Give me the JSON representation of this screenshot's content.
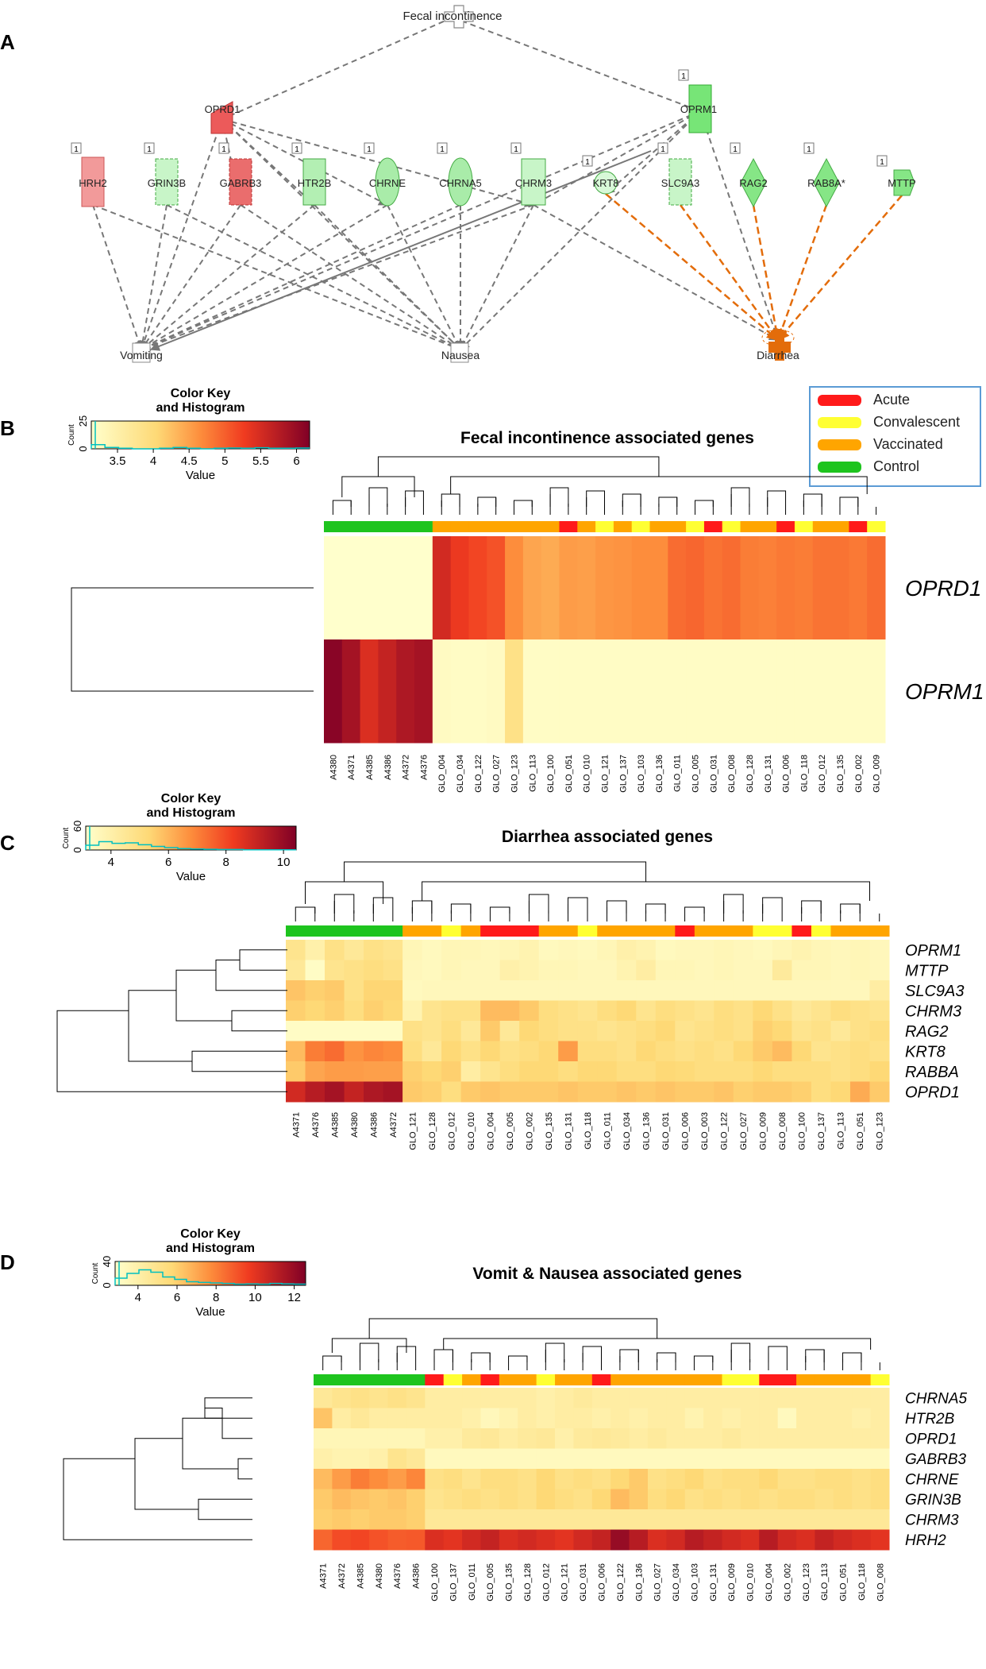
{
  "panel_labels": [
    "A",
    "B",
    "C",
    "D"
  ],
  "network": {
    "hubs": {
      "fecal": "Fecal incontinence",
      "vomiting": "Vomiting",
      "nausea": "Nausea",
      "diarrhea": "Diarrhea"
    },
    "count_badge": "1",
    "genes": [
      {
        "id": "OPRD1",
        "label": "OPRD1",
        "color": "#ec5a5a"
      },
      {
        "id": "OPRM1",
        "label": "OPRM1",
        "color": "#77e577"
      },
      {
        "id": "HRH2",
        "label": "HRH2",
        "color": "#f29a9a"
      },
      {
        "id": "GRIN3B",
        "label": "GRIN3B",
        "color": "#c8f5c8"
      },
      {
        "id": "GABRB3",
        "label": "GABRB3",
        "color": "#ea6d6d"
      },
      {
        "id": "HTR2B",
        "label": "HTR2B",
        "color": "#b3efb3"
      },
      {
        "id": "CHRNE",
        "label": "CHRNE",
        "color": "#a9eca9"
      },
      {
        "id": "CHRNA5",
        "label": "CHRNA5",
        "color": "#a9eca9"
      },
      {
        "id": "CHRM3",
        "label": "CHRM3",
        "color": "#c8f5c8"
      },
      {
        "id": "KRT8",
        "label": "KRT8",
        "color": "#d8f8d8"
      },
      {
        "id": "SLC9A3",
        "label": "SLC9A3",
        "color": "#c8f5c8"
      },
      {
        "id": "RAG2",
        "label": "RAG2",
        "color": "#86e686"
      },
      {
        "id": "RAB8A",
        "label": "RAB8A*",
        "color": "#86e686"
      },
      {
        "id": "MTTP",
        "label": "MTTP",
        "color": "#86e686"
      }
    ]
  },
  "legend": {
    "items": [
      {
        "label": "Acute",
        "color": "#ff1a1a"
      },
      {
        "label": "Convalescent",
        "color": "#ffff33"
      },
      {
        "label": "Vaccinated",
        "color": "#ffa500"
      },
      {
        "label": "Control",
        "color": "#1ec41e"
      }
    ]
  },
  "heatmaps": [
    {
      "title": "Fecal incontinence associated genes",
      "colorkey": {
        "title1": "Color Key",
        "title2": "and Histogram",
        "ylab": "Count",
        "yticks": [
          "0",
          "25"
        ],
        "xticks": [
          "3.5",
          "4",
          "4.5",
          "5",
          "5.5",
          "6"
        ],
        "xlabel": "Value",
        "histogram": [
          0.15,
          0.05,
          0.02,
          0,
          0,
          0.02,
          0.05,
          0.02,
          0,
          0.02,
          0.03,
          0.02,
          0.04,
          0.02,
          0.02,
          0.03
        ]
      },
      "rows": [
        "OPRD1",
        "OPRM1"
      ],
      "columns": [
        "A4380",
        "A4371",
        "A4385",
        "A4386",
        "A4372",
        "A4376",
        "GLO_004",
        "GLO_034",
        "GLO_122",
        "GLO_027",
        "GLO_123",
        "GLO_113",
        "GLO_100",
        "GLO_051",
        "GLO_010",
        "GLO_121",
        "GLO_137",
        "GLO_103",
        "GLO_136",
        "GLO_011",
        "GLO_005",
        "GLO_031",
        "GLO_008",
        "GLO_128",
        "GLO_131",
        "GLO_006",
        "GLO_118",
        "GLO_012",
        "GLO_135",
        "GLO_002",
        "GLO_009"
      ],
      "groups": [
        "C",
        "C",
        "C",
        "C",
        "C",
        "C",
        "V",
        "V",
        "V",
        "V",
        "V",
        "V",
        "V",
        "A",
        "V",
        "Y",
        "V",
        "Y",
        "V",
        "V",
        "Y",
        "A",
        "Y",
        "V",
        "V",
        "A",
        "Y",
        "V",
        "V",
        "A",
        "Y"
      ],
      "values": [
        [
          0,
          0,
          0,
          0,
          0,
          0,
          0.82,
          0.76,
          0.72,
          0.68,
          0.5,
          0.42,
          0.4,
          0.45,
          0.44,
          0.47,
          0.48,
          0.5,
          0.5,
          0.6,
          0.62,
          0.58,
          0.6,
          0.55,
          0.54,
          0.56,
          0.55,
          0.58,
          0.58,
          0.56,
          0.6
        ],
        [
          0.98,
          0.92,
          0.8,
          0.85,
          0.9,
          0.92,
          0.03,
          0.02,
          0.02,
          0.03,
          0.2,
          0.02,
          0.02,
          0.02,
          0.02,
          0.02,
          0.02,
          0.02,
          0.02,
          0.02,
          0.02,
          0.02,
          0.02,
          0.02,
          0.02,
          0.02,
          0.02,
          0.02,
          0.02,
          0.02,
          0.02
        ]
      ]
    },
    {
      "title": "Diarrhea associated genes",
      "colorkey": {
        "title1": "Color Key",
        "title2": "and Histogram",
        "ylab": "Count",
        "yticks": [
          "0",
          "60"
        ],
        "xticks": [
          "4",
          "6",
          "8",
          "10"
        ],
        "xlabel": "Value",
        "histogram": [
          0.2,
          0.35,
          0.28,
          0.3,
          0.22,
          0.15,
          0.1,
          0.06,
          0.04,
          0.03,
          0.02,
          0.02,
          0.01,
          0.01,
          0.01,
          0.01
        ]
      },
      "rows": [
        "OPRM1",
        "MTTP",
        "SLC9A3",
        "CHRM3",
        "RAG2",
        "KRT8",
        "RABBA",
        "OPRD1"
      ],
      "columns": [
        "A4371",
        "A4376",
        "A4385",
        "A4380",
        "A4386",
        "A4372",
        "GLO_121",
        "GLO_128",
        "GLO_012",
        "GLO_010",
        "GLO_004",
        "GLO_005",
        "GLO_002",
        "GLO_135",
        "GLO_131",
        "GLO_118",
        "GLO_011",
        "GLO_034",
        "GLO_136",
        "GLO_031",
        "GLO_006",
        "GLO_003",
        "GLO_122",
        "GLO_027",
        "GLO_009",
        "GLO_008",
        "GLO_100",
        "GLO_137",
        "GLO_113",
        "GLO_051",
        "GLO_123"
      ],
      "groups": [
        "C",
        "C",
        "C",
        "C",
        "C",
        "C",
        "V",
        "V",
        "Y",
        "V",
        "A",
        "A",
        "A",
        "V",
        "V",
        "Y",
        "V",
        "V",
        "V",
        "V",
        "A",
        "V",
        "V",
        "V",
        "Y",
        "Y",
        "A",
        "Y",
        "V",
        "V",
        "V"
      ],
      "values": [
        [
          0.18,
          0.1,
          0.2,
          0.15,
          0.2,
          0.18,
          0.06,
          0.04,
          0.06,
          0.06,
          0.05,
          0.06,
          0.08,
          0.04,
          0.05,
          0.04,
          0.06,
          0.1,
          0.08,
          0.04,
          0.05,
          0.05,
          0.06,
          0.05,
          0.04,
          0.06,
          0.08,
          0.06,
          0.05,
          0.06,
          0.05
        ],
        [
          0.15,
          0.02,
          0.18,
          0.2,
          0.22,
          0.2,
          0.05,
          0.04,
          0.06,
          0.05,
          0.05,
          0.1,
          0.08,
          0.06,
          0.06,
          0.05,
          0.05,
          0.08,
          0.12,
          0.06,
          0.06,
          0.05,
          0.06,
          0.05,
          0.05,
          0.14,
          0.06,
          0.06,
          0.05,
          0.06,
          0.05
        ],
        [
          0.32,
          0.28,
          0.3,
          0.2,
          0.26,
          0.26,
          0.04,
          0.05,
          0.05,
          0.05,
          0.05,
          0.05,
          0.05,
          0.05,
          0.05,
          0.05,
          0.05,
          0.05,
          0.05,
          0.05,
          0.05,
          0.05,
          0.05,
          0.05,
          0.05,
          0.05,
          0.05,
          0.05,
          0.05,
          0.05,
          0.12
        ],
        [
          0.28,
          0.25,
          0.28,
          0.22,
          0.28,
          0.25,
          0.08,
          0.18,
          0.2,
          0.2,
          0.35,
          0.35,
          0.3,
          0.22,
          0.2,
          0.18,
          0.22,
          0.25,
          0.18,
          0.22,
          0.2,
          0.18,
          0.22,
          0.2,
          0.25,
          0.2,
          0.15,
          0.18,
          0.22,
          0.2,
          0.18
        ],
        [
          0.02,
          0.02,
          0.02,
          0.02,
          0.02,
          0.02,
          0.2,
          0.18,
          0.22,
          0.15,
          0.3,
          0.15,
          0.25,
          0.22,
          0.2,
          0.2,
          0.18,
          0.2,
          0.22,
          0.25,
          0.18,
          0.2,
          0.22,
          0.2,
          0.28,
          0.25,
          0.18,
          0.2,
          0.15,
          0.2,
          0.22
        ],
        [
          0.35,
          0.55,
          0.6,
          0.48,
          0.52,
          0.5,
          0.22,
          0.15,
          0.25,
          0.2,
          0.25,
          0.2,
          0.22,
          0.25,
          0.45,
          0.22,
          0.22,
          0.2,
          0.25,
          0.22,
          0.2,
          0.22,
          0.2,
          0.25,
          0.3,
          0.35,
          0.25,
          0.18,
          0.2,
          0.22,
          0.2
        ],
        [
          0.3,
          0.42,
          0.45,
          0.45,
          0.44,
          0.44,
          0.28,
          0.25,
          0.28,
          0.12,
          0.18,
          0.22,
          0.25,
          0.25,
          0.22,
          0.25,
          0.25,
          0.22,
          0.22,
          0.25,
          0.24,
          0.22,
          0.22,
          0.22,
          0.25,
          0.22,
          0.22,
          0.22,
          0.2,
          0.22,
          0.25
        ],
        [
          0.82,
          0.88,
          0.92,
          0.85,
          0.9,
          0.92,
          0.3,
          0.28,
          0.22,
          0.3,
          0.32,
          0.3,
          0.3,
          0.3,
          0.32,
          0.3,
          0.3,
          0.32,
          0.3,
          0.32,
          0.3,
          0.3,
          0.32,
          0.28,
          0.3,
          0.3,
          0.28,
          0.22,
          0.25,
          0.4,
          0.3
        ]
      ]
    },
    {
      "title": "Vomit & Nausea associated genes",
      "colorkey": {
        "title1": "Color Key",
        "title2": "and Histogram",
        "ylab": "Count",
        "yticks": [
          "0",
          "40"
        ],
        "xticks": [
          "4",
          "6",
          "8",
          "10",
          "12"
        ],
        "xlabel": "Value",
        "histogram": [
          0.3,
          0.5,
          0.65,
          0.55,
          0.35,
          0.25,
          0.15,
          0.12,
          0.1,
          0.08,
          0.05,
          0.06,
          0.05,
          0.08,
          0.06,
          0.05
        ]
      },
      "rows": [
        "CHRNA5",
        "HTR2B",
        "OPRD1",
        "GABRB3",
        "CHRNE",
        "GRIN3B",
        "CHRM3",
        "HRH2"
      ],
      "columns": [
        "A4371",
        "A4372",
        "A4385",
        "A4380",
        "A4376",
        "A4386",
        "GLO_100",
        "GLO_137",
        "GLO_011",
        "GLO_005",
        "GLO_135",
        "GLO_128",
        "GLO_012",
        "GLO_121",
        "GLO_031",
        "GLO_006",
        "GLO_122",
        "GLO_136",
        "GLO_027",
        "GLO_034",
        "GLO_103",
        "GLO_131",
        "GLO_009",
        "GLO_010",
        "GLO_004",
        "GLO_002",
        "GLO_123",
        "GLO_113",
        "GLO_051",
        "GLO_118",
        "GLO_008"
      ],
      "groups": [
        "C",
        "C",
        "C",
        "C",
        "C",
        "C",
        "A",
        "Y",
        "V",
        "A",
        "V",
        "V",
        "Y",
        "V",
        "V",
        "A",
        "V",
        "V",
        "V",
        "V",
        "V",
        "V",
        "Y",
        "Y",
        "A",
        "A",
        "V",
        "V",
        "V",
        "V",
        "Y"
      ],
      "values": [
        [
          0.15,
          0.18,
          0.2,
          0.18,
          0.2,
          0.18,
          0.12,
          0.12,
          0.12,
          0.12,
          0.12,
          0.12,
          0.1,
          0.12,
          0.14,
          0.12,
          0.12,
          0.12,
          0.12,
          0.12,
          0.12,
          0.12,
          0.12,
          0.12,
          0.12,
          0.12,
          0.12,
          0.12,
          0.12,
          0.12,
          0.12
        ],
        [
          0.32,
          0.12,
          0.15,
          0.12,
          0.12,
          0.12,
          0.12,
          0.12,
          0.1,
          0.05,
          0.08,
          0.12,
          0.1,
          0.12,
          0.12,
          0.1,
          0.12,
          0.1,
          0.12,
          0.12,
          0.08,
          0.12,
          0.1,
          0.12,
          0.12,
          0.04,
          0.12,
          0.12,
          0.12,
          0.1,
          0.12
        ],
        [
          0.06,
          0.06,
          0.06,
          0.06,
          0.06,
          0.06,
          0.1,
          0.1,
          0.14,
          0.15,
          0.12,
          0.14,
          0.15,
          0.1,
          0.14,
          0.15,
          0.14,
          0.12,
          0.14,
          0.12,
          0.12,
          0.12,
          0.14,
          0.12,
          0.12,
          0.12,
          0.12,
          0.12,
          0.12,
          0.12,
          0.12
        ],
        [
          0.1,
          0.08,
          0.08,
          0.1,
          0.18,
          0.15,
          0.04,
          0.04,
          0.04,
          0.04,
          0.04,
          0.04,
          0.04,
          0.04,
          0.04,
          0.04,
          0.04,
          0.04,
          0.04,
          0.04,
          0.04,
          0.04,
          0.04,
          0.04,
          0.04,
          0.04,
          0.04,
          0.04,
          0.04,
          0.04,
          0.04
        ],
        [
          0.35,
          0.45,
          0.55,
          0.5,
          0.45,
          0.52,
          0.2,
          0.22,
          0.18,
          0.22,
          0.22,
          0.2,
          0.25,
          0.2,
          0.22,
          0.2,
          0.25,
          0.3,
          0.2,
          0.22,
          0.25,
          0.2,
          0.22,
          0.22,
          0.25,
          0.2,
          0.2,
          0.22,
          0.22,
          0.2,
          0.22
        ],
        [
          0.3,
          0.35,
          0.32,
          0.3,
          0.32,
          0.28,
          0.18,
          0.2,
          0.22,
          0.2,
          0.22,
          0.2,
          0.25,
          0.22,
          0.2,
          0.25,
          0.35,
          0.3,
          0.22,
          0.25,
          0.2,
          0.22,
          0.2,
          0.22,
          0.2,
          0.22,
          0.22,
          0.2,
          0.22,
          0.2,
          0.22
        ],
        [
          0.28,
          0.3,
          0.28,
          0.3,
          0.3,
          0.28,
          0.15,
          0.15,
          0.15,
          0.15,
          0.15,
          0.15,
          0.15,
          0.15,
          0.15,
          0.15,
          0.15,
          0.15,
          0.15,
          0.15,
          0.15,
          0.15,
          0.15,
          0.15,
          0.15,
          0.15,
          0.15,
          0.15,
          0.15,
          0.15,
          0.15
        ],
        [
          0.62,
          0.7,
          0.72,
          0.68,
          0.65,
          0.66,
          0.8,
          0.78,
          0.82,
          0.85,
          0.8,
          0.82,
          0.8,
          0.78,
          0.82,
          0.85,
          0.95,
          0.88,
          0.8,
          0.82,
          0.88,
          0.85,
          0.82,
          0.8,
          0.88,
          0.82,
          0.8,
          0.85,
          0.82,
          0.8,
          0.78
        ]
      ]
    }
  ]
}
